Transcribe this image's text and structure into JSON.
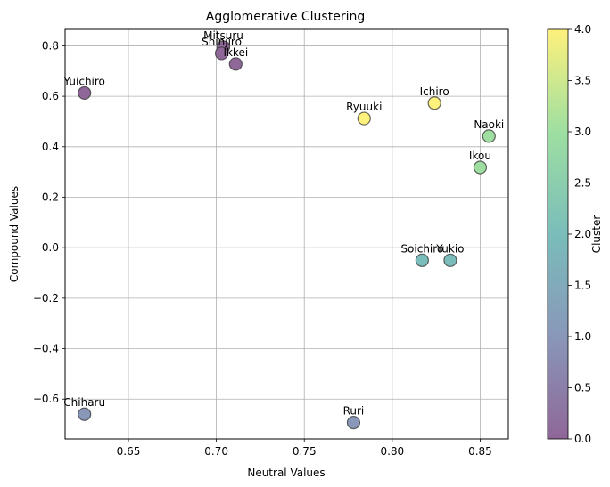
{
  "chart_data": {
    "type": "scatter",
    "title": "Agglomerative Clustering",
    "xlabel": "Neutral Values",
    "ylabel": "Compound Values",
    "xlim": [
      0.614,
      0.866
    ],
    "ylim": [
      -0.758,
      0.865
    ],
    "xticks": [
      0.65,
      0.7,
      0.75,
      0.8,
      0.85
    ],
    "xtick_labels": [
      "0.65",
      "0.70",
      "0.75",
      "0.80",
      "0.85"
    ],
    "yticks": [
      -0.6,
      -0.4,
      -0.2,
      0.0,
      0.2,
      0.4,
      0.6,
      0.8
    ],
    "ytick_labels": [
      "−0.6",
      "−0.4",
      "−0.2",
      "0.0",
      "0.2",
      "0.4",
      "0.6",
      "0.8"
    ],
    "grid": true,
    "colorbar": {
      "label": "Cluster",
      "range": [
        0,
        4
      ],
      "ticks": [
        0.0,
        0.5,
        1.0,
        1.5,
        2.0,
        2.5,
        3.0,
        3.5,
        4.0
      ],
      "tick_labels": [
        "0.0",
        "0.5",
        "1.0",
        "1.5",
        "2.0",
        "2.5",
        "3.0",
        "3.5",
        "4.0"
      ],
      "colormap": "viridis",
      "colormap_stops": [
        "#440154",
        "#3b528b",
        "#21918c",
        "#5ec962",
        "#fde725"
      ],
      "alpha": 0.6
    },
    "points": [
      {
        "name": "Mitsuru",
        "x": 0.704,
        "y": 0.795,
        "cluster": 0
      },
      {
        "name": "Shinjiro",
        "x": 0.703,
        "y": 0.77,
        "cluster": 0
      },
      {
        "name": "Ikkei",
        "x": 0.711,
        "y": 0.728,
        "cluster": 0
      },
      {
        "name": "Yuichiro",
        "x": 0.625,
        "y": 0.613,
        "cluster": 0
      },
      {
        "name": "Ryuuki",
        "x": 0.784,
        "y": 0.512,
        "cluster": 4
      },
      {
        "name": "Ichiro",
        "x": 0.824,
        "y": 0.573,
        "cluster": 4
      },
      {
        "name": "Naoki",
        "x": 0.855,
        "y": 0.442,
        "cluster": 3
      },
      {
        "name": "Ikou",
        "x": 0.85,
        "y": 0.318,
        "cluster": 3
      },
      {
        "name": "Soichiro",
        "x": 0.817,
        "y": -0.05,
        "cluster": 2
      },
      {
        "name": "Yukio",
        "x": 0.833,
        "y": -0.05,
        "cluster": 2
      },
      {
        "name": "Chiharu",
        "x": 0.625,
        "y": -0.66,
        "cluster": 1
      },
      {
        "name": "Ruri",
        "x": 0.778,
        "y": -0.693,
        "cluster": 1
      }
    ]
  }
}
